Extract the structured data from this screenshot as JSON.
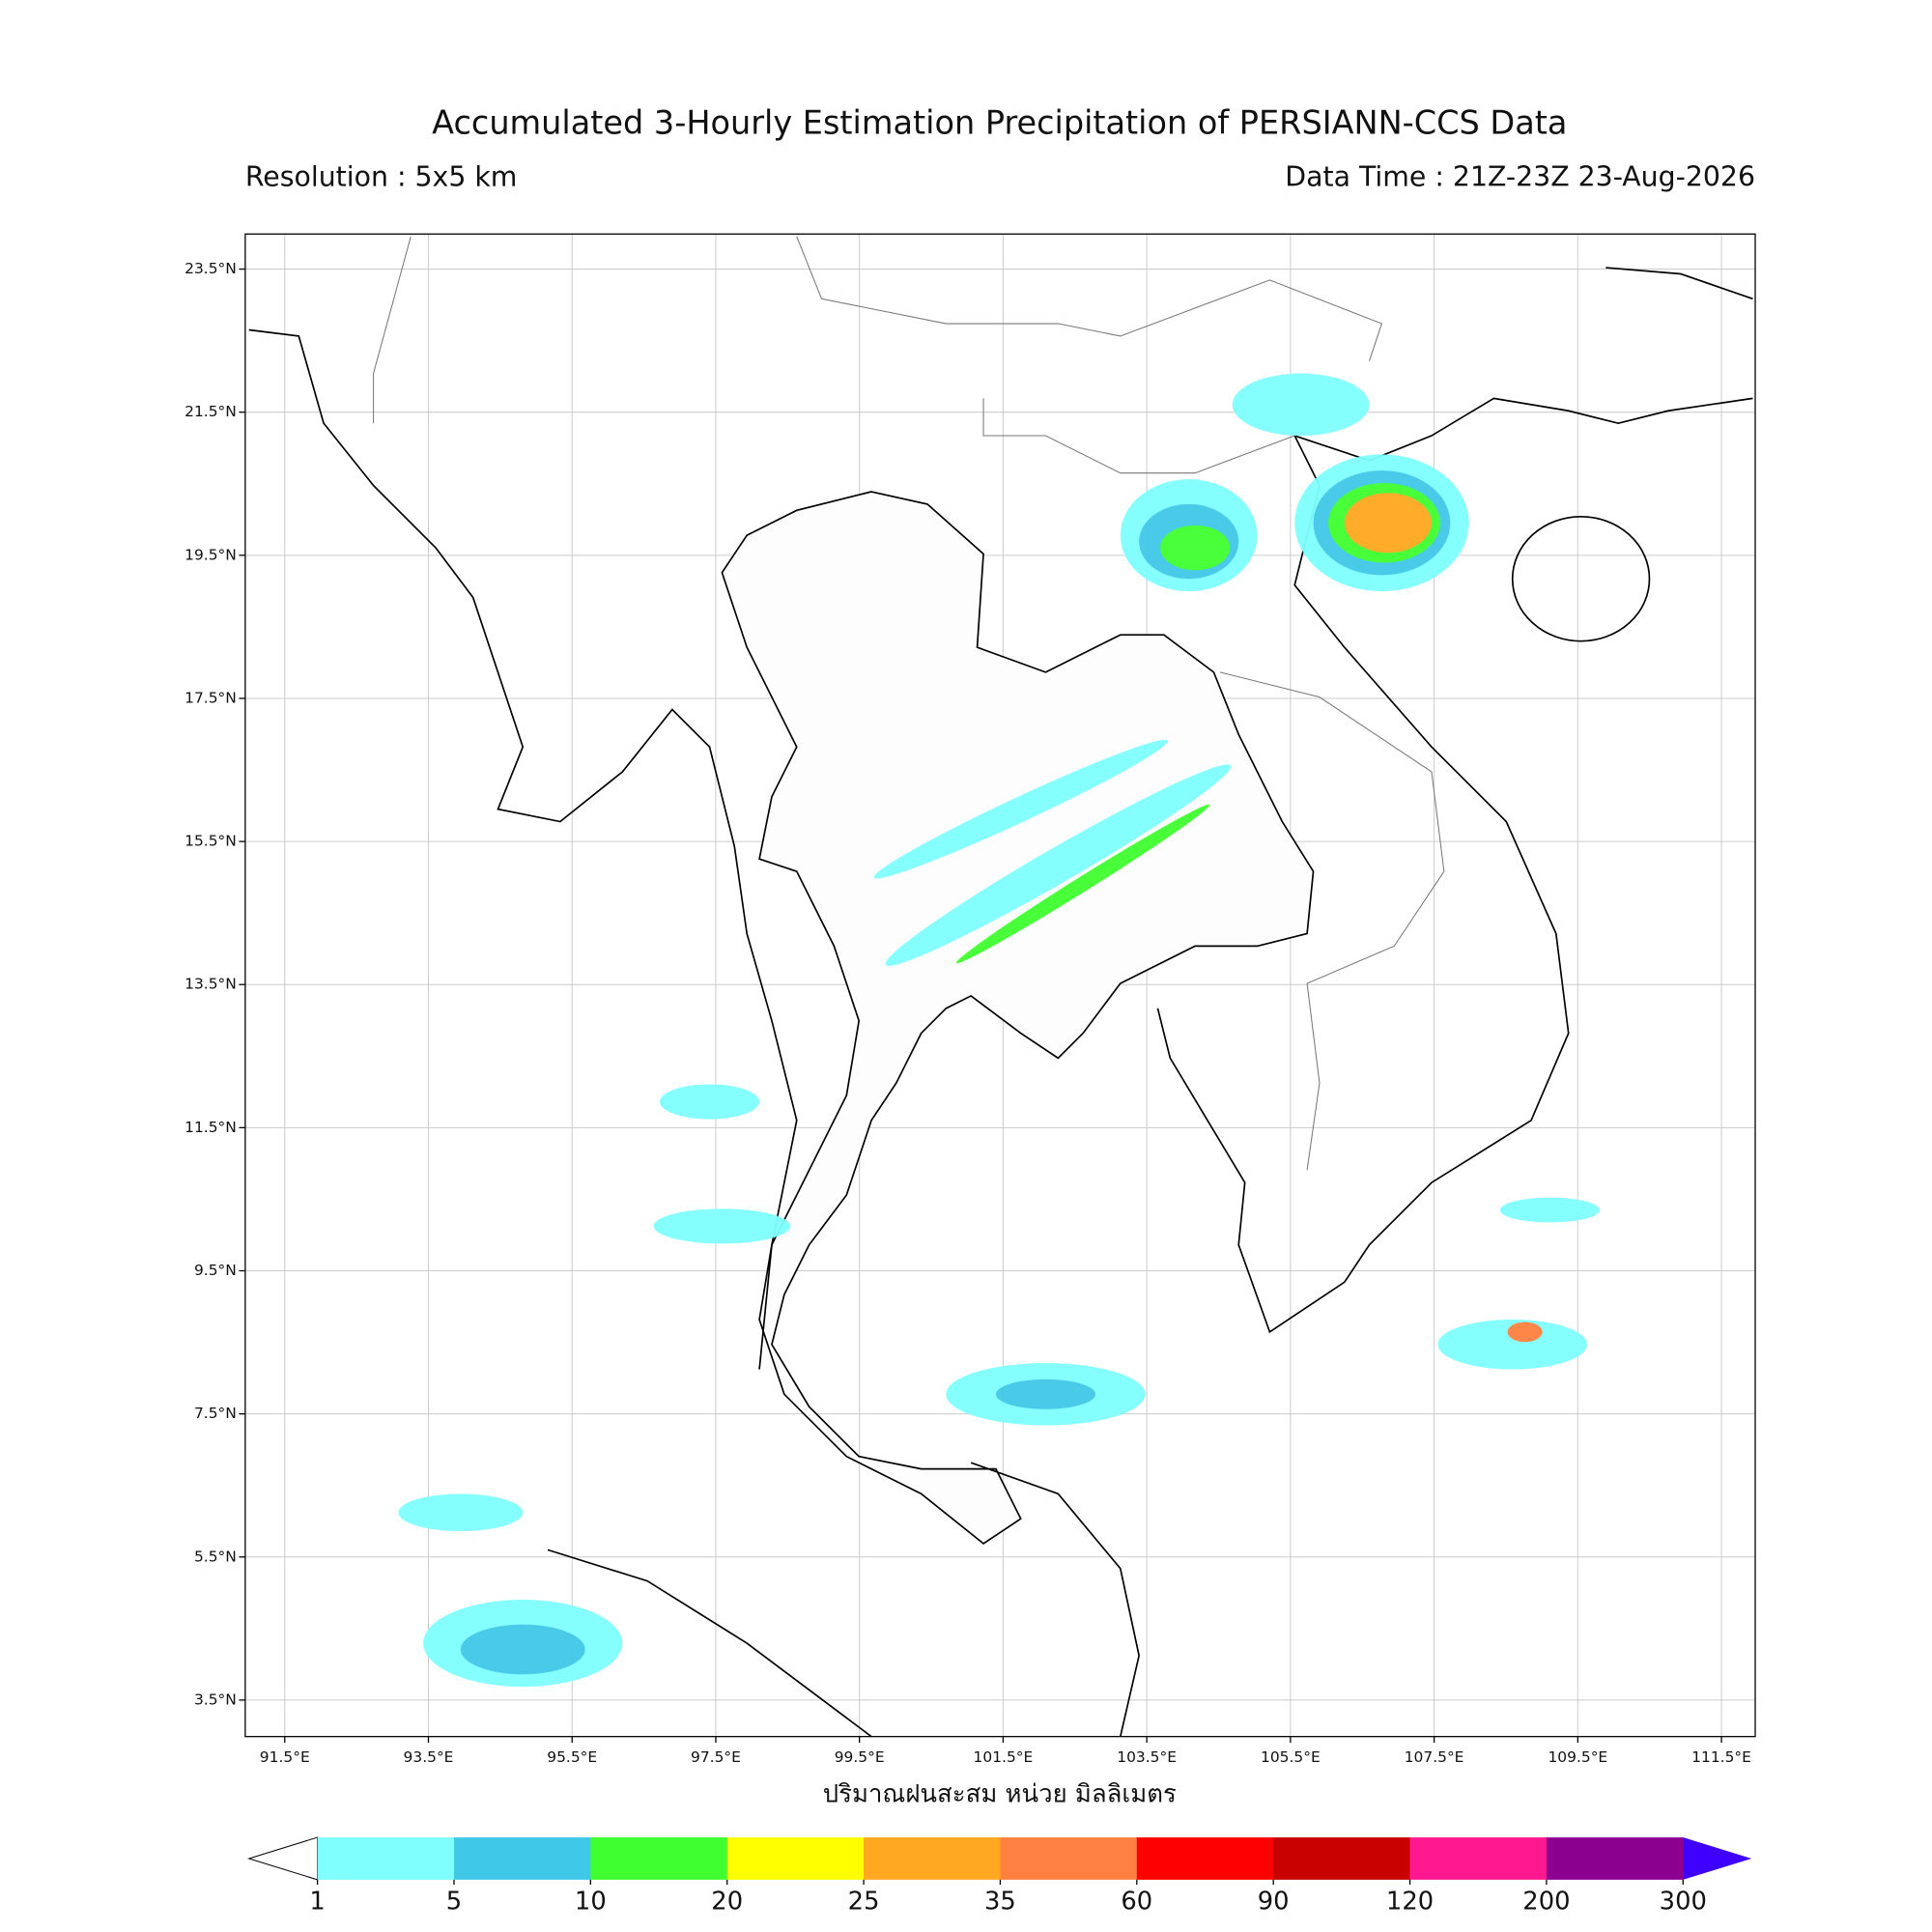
{
  "map": {
    "title": "Accumulated 3-Hourly Estimation Precipitation of PERSIANN-CCS Data",
    "subtitle_left": "Resolution : 5x5 km",
    "subtitle_right": "Data Time : 21Z-23Z 23-Aug-2026",
    "xlabel": "ปริมาณฝนสะสม หน่วย มิลลิเมตร",
    "xlim": [
      90.95,
      111.97
    ],
    "ylim": [
      2.99,
      23.99
    ],
    "grid": true,
    "xticks": [
      {
        "value": 91.5,
        "label": "91.5°E"
      },
      {
        "value": 93.5,
        "label": "93.5°E"
      },
      {
        "value": 95.5,
        "label": "95.5°E"
      },
      {
        "value": 97.5,
        "label": "97.5°E"
      },
      {
        "value": 99.5,
        "label": "99.5°E"
      },
      {
        "value": 101.5,
        "label": "101.5°E"
      },
      {
        "value": 103.5,
        "label": "103.5°E"
      },
      {
        "value": 105.5,
        "label": "105.5°E"
      },
      {
        "value": 107.5,
        "label": "107.5°E"
      },
      {
        "value": 109.5,
        "label": "109.5°E"
      },
      {
        "value": 111.5,
        "label": "111.5°E"
      }
    ],
    "yticks": [
      {
        "value": 23.5,
        "label": "23.5°N"
      },
      {
        "value": 21.5,
        "label": "21.5°N"
      },
      {
        "value": 19.5,
        "label": "19.5°N"
      },
      {
        "value": 17.5,
        "label": "17.5°N"
      },
      {
        "value": 15.5,
        "label": "15.5°N"
      },
      {
        "value": 13.5,
        "label": "13.5°N"
      },
      {
        "value": 11.5,
        "label": "11.5°N"
      },
      {
        "value": 9.5,
        "label": "9.5°N"
      },
      {
        "value": 7.5,
        "label": "7.5°N"
      },
      {
        "value": 5.5,
        "label": "5.5°N"
      },
      {
        "value": 3.5,
        "label": "3.5°N"
      }
    ],
    "colorbar": {
      "bounds": [
        1,
        5,
        10,
        20,
        25,
        35,
        60,
        90,
        120,
        200,
        300
      ],
      "colors": [
        "#80ffff",
        "#40c8e8",
        "#40ff30",
        "#ffff00",
        "#ffa820",
        "#ff8040",
        "#ff0000",
        "#c80000",
        "#ff1890",
        "#8c0090"
      ],
      "under_color": "#ffffff",
      "over_color": "#4000ff"
    }
  }
}
